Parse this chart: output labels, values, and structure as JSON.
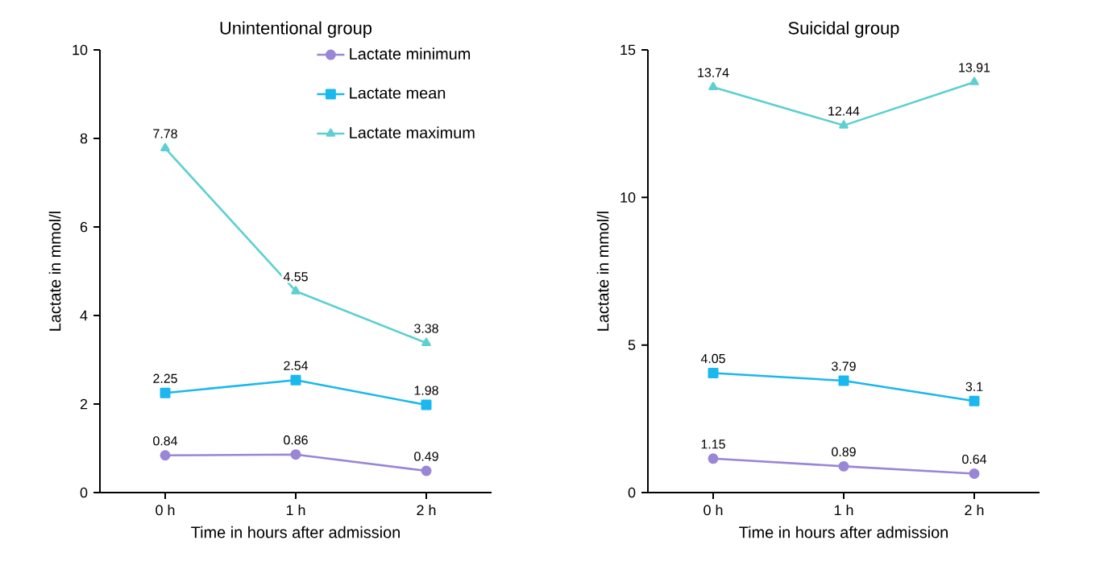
{
  "chart_data": [
    {
      "type": "line",
      "title": "Unintentional group",
      "xlabel": "Time in hours after admission",
      "ylabel": "Lactate in mmol/l",
      "categories": [
        "0 h",
        "1 h",
        "2 h"
      ],
      "ylim": [
        0,
        10
      ],
      "yticks": [
        0,
        2,
        4,
        6,
        8,
        10
      ],
      "legend": "top right",
      "data_labels": true,
      "series": [
        {
          "name": "Lactate minimum",
          "color": "#9a86d6",
          "marker": "circle",
          "values": [
            0.84,
            0.86,
            0.49
          ]
        },
        {
          "name": "Lactate mean",
          "color": "#1ab8ee",
          "marker": "square",
          "values": [
            2.25,
            2.54,
            1.98
          ]
        },
        {
          "name": "Lactate maximum",
          "color": "#5dcfd0",
          "marker": "triangle",
          "values": [
            7.78,
            4.55,
            3.38
          ]
        }
      ]
    },
    {
      "type": "line",
      "title": "Suicidal group",
      "xlabel": "Time in hours after admission",
      "ylabel": "Lactate in mmol/l",
      "categories": [
        "0 h",
        "1 h",
        "2 h"
      ],
      "ylim": [
        0,
        15
      ],
      "yticks": [
        0,
        5,
        10,
        15
      ],
      "data_labels": true,
      "series": [
        {
          "color": "#9a86d6",
          "marker": "circle",
          "values": [
            1.15,
            0.89,
            0.64
          ]
        },
        {
          "color": "#1ab8ee",
          "marker": "square",
          "values": [
            4.05,
            3.79,
            3.1
          ]
        },
        {
          "color": "#5dcfd0",
          "marker": "triangle",
          "values": [
            13.74,
            12.44,
            13.91
          ]
        }
      ]
    }
  ]
}
